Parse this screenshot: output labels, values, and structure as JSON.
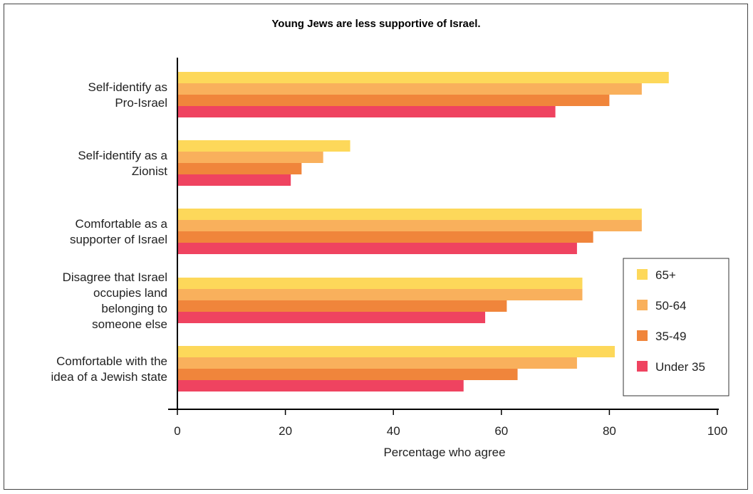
{
  "chart_data": {
    "type": "bar",
    "orientation": "horizontal",
    "title": "Young Jews are less supportive of Israel.",
    "xlabel": "Percentage who agree",
    "ylabel": "",
    "xlim": [
      0,
      100
    ],
    "xticks": [
      0,
      20,
      40,
      60,
      80,
      100
    ],
    "grid": false,
    "legend_position": "bottom-right",
    "categories": [
      [
        "Self-identify as",
        "Pro-Israel"
      ],
      [
        "Self-identify as a",
        "Zionist"
      ],
      [
        "Comfortable as a",
        "supporter of Israel"
      ],
      [
        "Disagree that Israel",
        "occupies land",
        "belonging to",
        "someone else"
      ],
      [
        "Comfortable with the",
        "idea of a Jewish state"
      ]
    ],
    "series": [
      {
        "name": "65+",
        "color": "#fdd85a",
        "values": [
          91,
          32,
          86,
          75,
          81
        ]
      },
      {
        "name": "50-64",
        "color": "#f9b05c",
        "values": [
          86,
          27,
          86,
          75,
          74
        ]
      },
      {
        "name": "35-49",
        "color": "#f0853b",
        "values": [
          80,
          23,
          77,
          61,
          63
        ]
      },
      {
        "name": "Under 35",
        "color": "#ef4360",
        "values": [
          70,
          21,
          74,
          57,
          53
        ]
      }
    ]
  }
}
